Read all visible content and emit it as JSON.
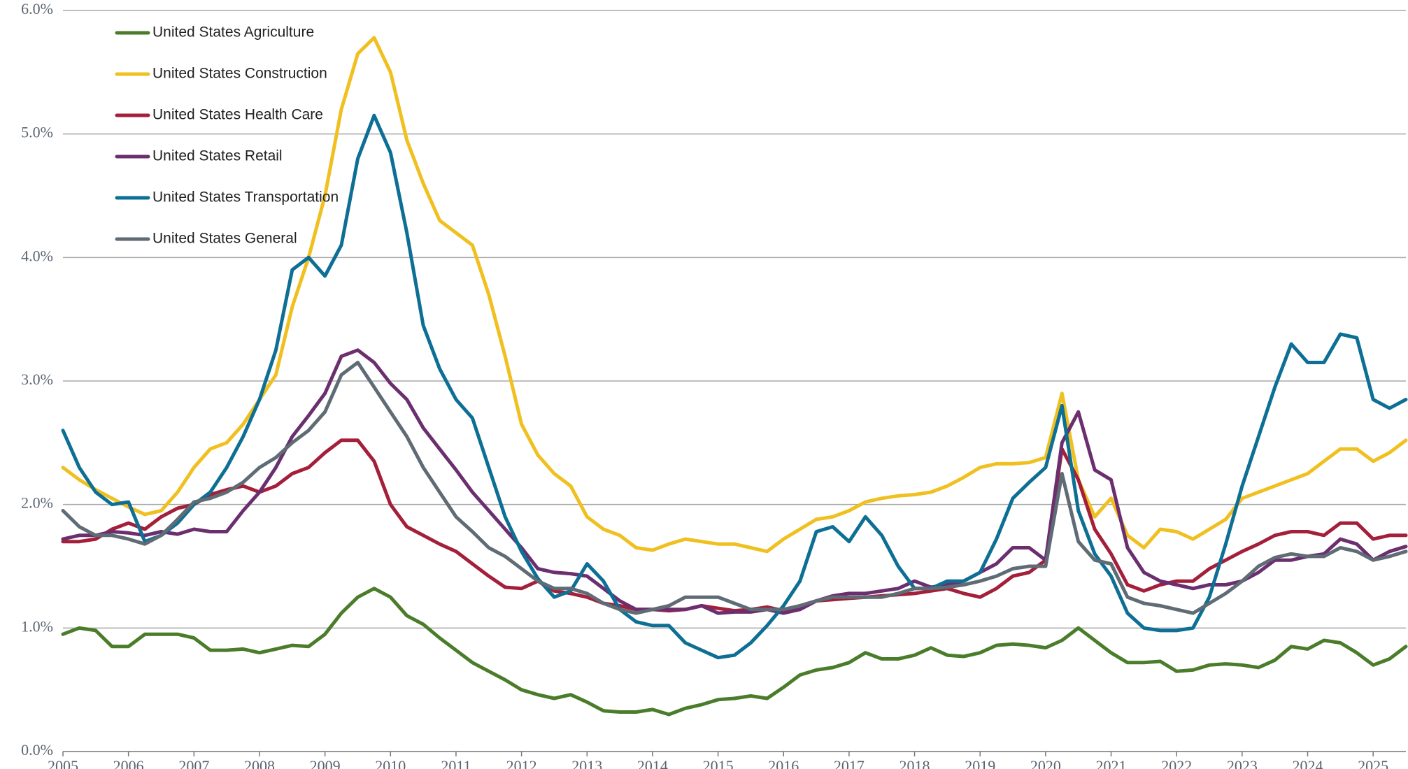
{
  "chart_data": {
    "type": "line",
    "legend": "upper left",
    "grid": true,
    "xlim": [
      2005,
      2025.5
    ],
    "xticks": [
      2005,
      2006,
      2007,
      2008,
      2009,
      2010,
      2011,
      2012,
      2013,
      2014,
      2015,
      2016,
      2017,
      2018,
      2019,
      2020,
      2021,
      2022,
      2023,
      2024,
      2025
    ],
    "ylim": [
      0,
      6
    ],
    "yticks": [
      {
        "value": 0,
        "label": "0.0%"
      },
      {
        "value": 1,
        "label": "1.0%"
      },
      {
        "value": 2,
        "label": "2.0%"
      },
      {
        "value": 3,
        "label": "3.0%"
      },
      {
        "value": 4,
        "label": "4.0%"
      },
      {
        "value": 5,
        "label": "5.0%"
      },
      {
        "value": 6,
        "label": "6.0%"
      }
    ],
    "x": [
      2005,
      2005.25,
      2005.5,
      2005.75,
      2006,
      2006.25,
      2006.5,
      2006.75,
      2007,
      2007.25,
      2007.5,
      2007.75,
      2008,
      2008.25,
      2008.5,
      2008.75,
      2009,
      2009.25,
      2009.5,
      2009.75,
      2010,
      2010.25,
      2010.5,
      2010.75,
      2011,
      2011.25,
      2011.5,
      2011.75,
      2012,
      2012.25,
      2012.5,
      2012.75,
      2013,
      2013.25,
      2013.5,
      2013.75,
      2014,
      2014.25,
      2014.5,
      2014.75,
      2015,
      2015.25,
      2015.5,
      2015.75,
      2016,
      2016.25,
      2016.5,
      2016.75,
      2017,
      2017.25,
      2017.5,
      2017.75,
      2018,
      2018.25,
      2018.5,
      2018.75,
      2019,
      2019.25,
      2019.5,
      2019.75,
      2020,
      2020.25,
      2020.5,
      2020.75,
      2021,
      2021.25,
      2021.5,
      2021.75,
      2022,
      2022.25,
      2022.5,
      2022.75,
      2023,
      2023.25,
      2023.5,
      2023.75,
      2024,
      2024.25,
      2024.5,
      2024.75,
      2025,
      2025.25,
      2025.5
    ],
    "series": [
      {
        "name": "United States Agriculture",
        "color": "#4a7c2a",
        "values": [
          0.95,
          1.0,
          0.98,
          0.85,
          0.85,
          0.95,
          0.95,
          0.95,
          0.92,
          0.82,
          0.82,
          0.83,
          0.8,
          0.83,
          0.86,
          0.85,
          0.95,
          1.12,
          1.25,
          1.32,
          1.25,
          1.1,
          1.03,
          0.92,
          0.82,
          0.72,
          0.65,
          0.58,
          0.5,
          0.46,
          0.43,
          0.46,
          0.4,
          0.33,
          0.32,
          0.32,
          0.34,
          0.3,
          0.35,
          0.38,
          0.42,
          0.43,
          0.45,
          0.43,
          0.52,
          0.62,
          0.66,
          0.68,
          0.72,
          0.8,
          0.75,
          0.75,
          0.78,
          0.84,
          0.78,
          0.77,
          0.8,
          0.86,
          0.87,
          0.86,
          0.84,
          0.9,
          1.0,
          0.9,
          0.8,
          0.72,
          0.72,
          0.73,
          0.65,
          0.66,
          0.7,
          0.71,
          0.7,
          0.68,
          0.74,
          0.85,
          0.83,
          0.9,
          0.88,
          0.8,
          0.7,
          0.75,
          0.85
        ]
      },
      {
        "name": "United States Construction",
        "color": "#f0c020",
        "values": [
          2.3,
          2.2,
          2.12,
          2.05,
          1.98,
          1.92,
          1.95,
          2.1,
          2.3,
          2.45,
          2.5,
          2.65,
          2.85,
          3.05,
          3.6,
          4.0,
          4.5,
          5.2,
          5.65,
          5.78,
          5.5,
          4.95,
          4.6,
          4.3,
          4.2,
          4.1,
          3.7,
          3.2,
          2.65,
          2.4,
          2.25,
          2.15,
          1.9,
          1.8,
          1.75,
          1.65,
          1.63,
          1.68,
          1.72,
          1.7,
          1.68,
          1.68,
          1.65,
          1.62,
          1.72,
          1.8,
          1.88,
          1.9,
          1.95,
          2.02,
          2.05,
          2.07,
          2.08,
          2.1,
          2.15,
          2.22,
          2.3,
          2.33,
          2.33,
          2.34,
          2.38,
          2.9,
          2.2,
          1.9,
          2.05,
          1.75,
          1.65,
          1.8,
          1.78,
          1.72,
          1.8,
          1.88,
          2.05,
          2.1,
          2.15,
          2.2,
          2.25,
          2.35,
          2.45,
          2.45,
          2.35,
          2.42,
          2.52
        ]
      },
      {
        "name": "United States Health Care",
        "color": "#a31f3a",
        "values": [
          1.7,
          1.7,
          1.72,
          1.8,
          1.85,
          1.8,
          1.9,
          1.97,
          2.0,
          2.08,
          2.12,
          2.15,
          2.1,
          2.15,
          2.25,
          2.3,
          2.42,
          2.52,
          2.52,
          2.35,
          2.0,
          1.82,
          1.75,
          1.68,
          1.62,
          1.52,
          1.42,
          1.33,
          1.32,
          1.38,
          1.3,
          1.28,
          1.25,
          1.2,
          1.18,
          1.15,
          1.15,
          1.14,
          1.15,
          1.18,
          1.16,
          1.14,
          1.15,
          1.17,
          1.14,
          1.18,
          1.22,
          1.23,
          1.24,
          1.25,
          1.26,
          1.27,
          1.28,
          1.3,
          1.32,
          1.28,
          1.25,
          1.32,
          1.42,
          1.45,
          1.55,
          2.45,
          2.2,
          1.8,
          1.6,
          1.35,
          1.3,
          1.35,
          1.38,
          1.38,
          1.48,
          1.55,
          1.62,
          1.68,
          1.75,
          1.78,
          1.78,
          1.75,
          1.85,
          1.85,
          1.72,
          1.75,
          1.75
        ]
      },
      {
        "name": "United States Retail",
        "color": "#6b2e6e",
        "values": [
          1.72,
          1.75,
          1.75,
          1.78,
          1.77,
          1.75,
          1.78,
          1.76,
          1.8,
          1.78,
          1.78,
          1.95,
          2.1,
          2.3,
          2.55,
          2.72,
          2.9,
          3.2,
          3.25,
          3.15,
          2.98,
          2.85,
          2.62,
          2.45,
          2.28,
          2.1,
          1.95,
          1.8,
          1.65,
          1.48,
          1.45,
          1.44,
          1.42,
          1.32,
          1.22,
          1.15,
          1.15,
          1.15,
          1.15,
          1.18,
          1.12,
          1.13,
          1.13,
          1.15,
          1.12,
          1.15,
          1.22,
          1.26,
          1.28,
          1.28,
          1.3,
          1.32,
          1.38,
          1.33,
          1.35,
          1.38,
          1.45,
          1.52,
          1.65,
          1.65,
          1.55,
          2.5,
          2.75,
          2.28,
          2.2,
          1.65,
          1.45,
          1.38,
          1.35,
          1.32,
          1.35,
          1.35,
          1.38,
          1.45,
          1.55,
          1.55,
          1.58,
          1.6,
          1.72,
          1.68,
          1.55,
          1.62,
          1.66
        ]
      },
      {
        "name": "United States Transportation",
        "color": "#0e6f95",
        "values": [
          2.6,
          2.3,
          2.1,
          2.0,
          2.02,
          1.7,
          1.75,
          1.85,
          2.0,
          2.1,
          2.3,
          2.55,
          2.85,
          3.25,
          3.9,
          4.0,
          3.85,
          4.1,
          4.8,
          5.15,
          4.85,
          4.2,
          3.45,
          3.1,
          2.85,
          2.7,
          2.3,
          1.9,
          1.62,
          1.4,
          1.25,
          1.3,
          1.52,
          1.38,
          1.15,
          1.05,
          1.02,
          1.02,
          0.88,
          0.82,
          0.76,
          0.78,
          0.88,
          1.02,
          1.18,
          1.38,
          1.78,
          1.82,
          1.7,
          1.9,
          1.75,
          1.5,
          1.32,
          1.32,
          1.38,
          1.38,
          1.45,
          1.72,
          2.05,
          2.18,
          2.3,
          2.8,
          1.95,
          1.6,
          1.42,
          1.12,
          1.0,
          0.98,
          0.98,
          1.0,
          1.25,
          1.68,
          2.15,
          2.55,
          2.95,
          3.3,
          3.15,
          3.15,
          3.38,
          3.35,
          2.85,
          2.78,
          2.85
        ]
      },
      {
        "name": "United States General",
        "color": "#5f6b75",
        "values": [
          1.95,
          1.82,
          1.75,
          1.75,
          1.72,
          1.68,
          1.75,
          1.88,
          2.02,
          2.05,
          2.1,
          2.18,
          2.3,
          2.38,
          2.5,
          2.6,
          2.75,
          3.05,
          3.15,
          2.95,
          2.75,
          2.55,
          2.3,
          2.1,
          1.9,
          1.78,
          1.65,
          1.58,
          1.48,
          1.38,
          1.32,
          1.32,
          1.28,
          1.2,
          1.15,
          1.12,
          1.15,
          1.18,
          1.25,
          1.25,
          1.25,
          1.2,
          1.15,
          1.15,
          1.15,
          1.18,
          1.22,
          1.25,
          1.25,
          1.25,
          1.25,
          1.28,
          1.32,
          1.32,
          1.33,
          1.35,
          1.38,
          1.42,
          1.48,
          1.5,
          1.5,
          2.25,
          1.7,
          1.55,
          1.52,
          1.25,
          1.2,
          1.18,
          1.15,
          1.12,
          1.2,
          1.28,
          1.38,
          1.5,
          1.57,
          1.6,
          1.58,
          1.58,
          1.65,
          1.62,
          1.55,
          1.58,
          1.62
        ]
      }
    ]
  }
}
